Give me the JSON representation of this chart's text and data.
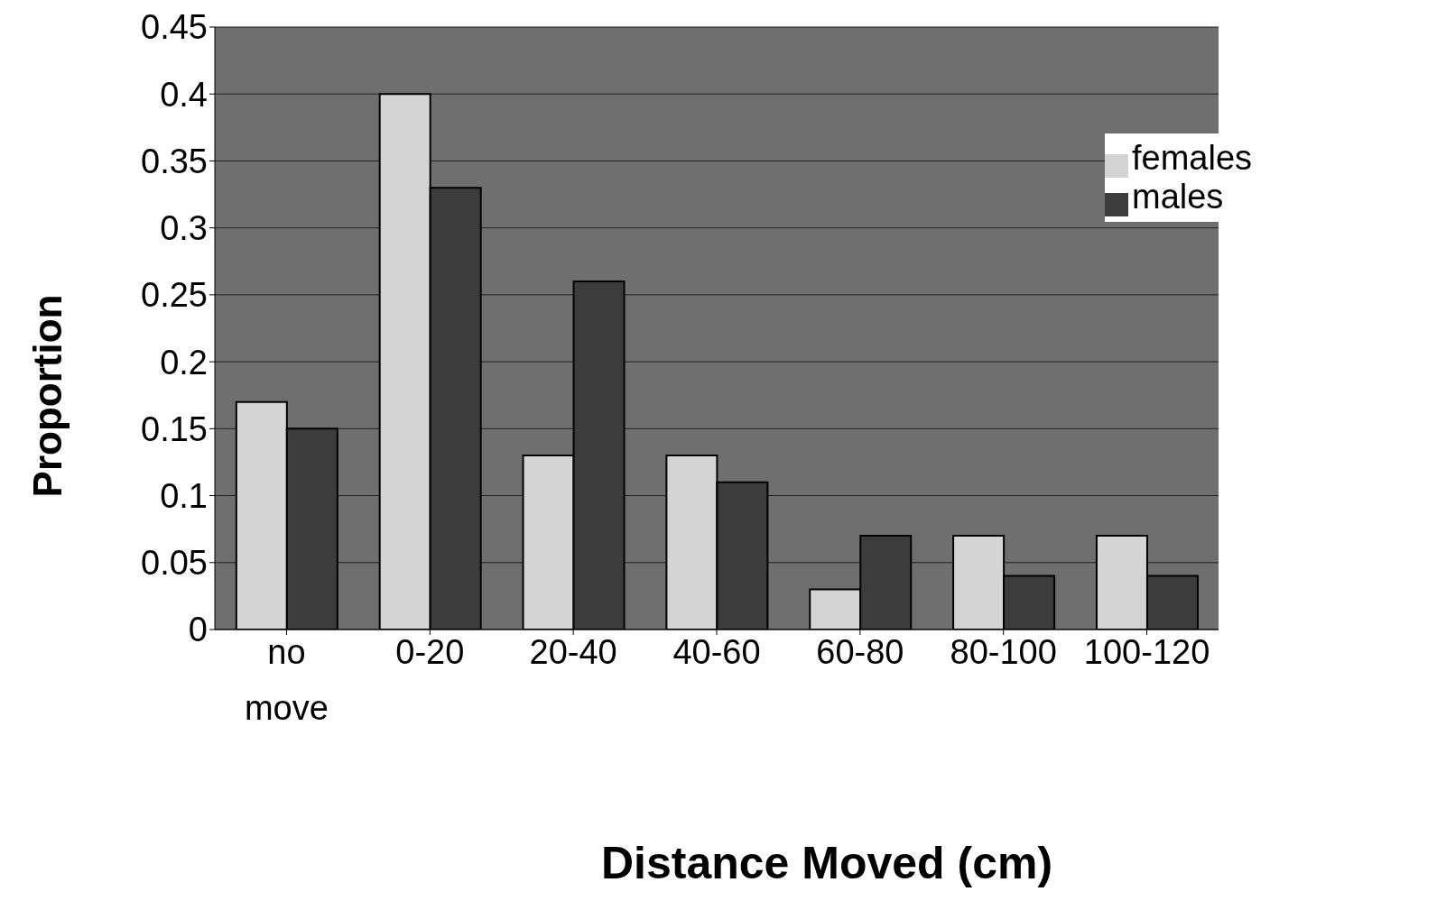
{
  "chart_data": {
    "type": "bar",
    "xlabel": "Distance Moved (cm)",
    "ylabel": "Proportion",
    "categories": [
      "no move",
      "0-20",
      "20-40",
      "40-60",
      "60-80",
      "80-100",
      "100-120"
    ],
    "series": [
      {
        "name": "females",
        "color": "#d4d4d4",
        "values": [
          0.17,
          0.4,
          0.13,
          0.13,
          0.03,
          0.07,
          0.07
        ]
      },
      {
        "name": "males",
        "color": "#3c3c3c",
        "values": [
          0.15,
          0.33,
          0.26,
          0.11,
          0.07,
          0.04,
          0.04
        ]
      }
    ],
    "ylim": [
      0,
      0.45
    ],
    "yticks": [
      0,
      0.05,
      0.1,
      0.15,
      0.2,
      0.25,
      0.3,
      0.35,
      0.4,
      0.45
    ],
    "grid": "y",
    "legend": "top right"
  }
}
